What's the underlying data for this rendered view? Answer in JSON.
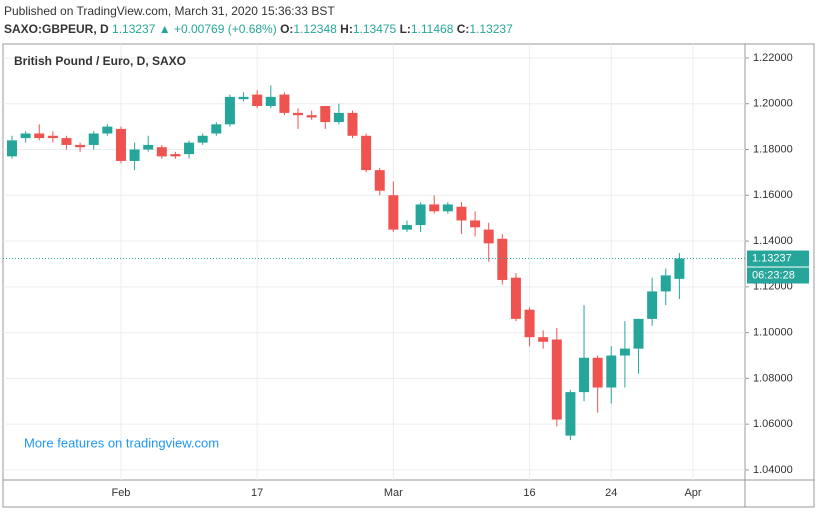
{
  "header": {
    "published": "Published on TradingView.com, March 31, 2020 15:36:33 BST",
    "symbol": "SAXO:GBPEUR, D",
    "last": "1.13237",
    "change": "▲ +0.00769 (+0.68%)",
    "ohlc": [
      {
        "label": "O:",
        "value": "1.12348"
      },
      {
        "label": "H:",
        "value": "1.13475"
      },
      {
        "label": "L:",
        "value": "1.11468"
      },
      {
        "label": "C:",
        "value": "1.13237"
      }
    ]
  },
  "chart_data": {
    "type": "candlestick",
    "title": "British Pound / Euro, D, SAXO",
    "categories": [
      null,
      null,
      null,
      null,
      null,
      null,
      null,
      null,
      "Feb",
      null,
      null,
      null,
      null,
      null,
      null,
      null,
      null,
      null,
      "17",
      null,
      null,
      null,
      null,
      null,
      null,
      null,
      null,
      null,
      "Mar",
      null,
      null,
      null,
      null,
      null,
      null,
      null,
      null,
      null,
      "16",
      null,
      null,
      null,
      null,
      null,
      "24",
      null,
      null,
      null,
      null,
      null,
      "Apr"
    ],
    "open": [
      1.177,
      1.185,
      1.187,
      1.186,
      1.185,
      1.182,
      1.182,
      1.187,
      1.189,
      1.175,
      1.18,
      1.181,
      1.178,
      1.178,
      1.183,
      1.187,
      1.191,
      1.202,
      1.204,
      1.199,
      1.204,
      1.196,
      1.195,
      1.199,
      1.192,
      1.196,
      1.186,
      1.171,
      1.16,
      1.145,
      1.147,
      1.156,
      1.153,
      1.155,
      1.149,
      1.145,
      1.141,
      1.124,
      1.11,
      1.098,
      1.097,
      1.055,
      1.074,
      1.089,
      1.076,
      1.09,
      1.093,
      1.106,
      1.118,
      1.12348,
      null
    ],
    "high": [
      1.186,
      1.188,
      1.191,
      1.188,
      1.186,
      1.183,
      1.188,
      1.191,
      1.19,
      1.183,
      1.186,
      1.182,
      1.179,
      1.184,
      1.187,
      1.192,
      1.204,
      1.205,
      1.206,
      1.208,
      1.205,
      1.198,
      1.197,
      1.199,
      1.2,
      1.197,
      1.187,
      1.172,
      1.166,
      1.149,
      1.157,
      1.16,
      1.157,
      1.157,
      1.153,
      1.148,
      1.143,
      1.126,
      1.111,
      1.101,
      1.102,
      1.075,
      1.112,
      1.09,
      1.094,
      1.105,
      1.106,
      1.124,
      1.128,
      1.13475,
      null
    ],
    "low": [
      1.176,
      1.183,
      1.184,
      1.183,
      1.18,
      1.179,
      1.18,
      1.186,
      1.174,
      1.171,
      1.179,
      1.176,
      1.176,
      1.176,
      1.182,
      1.186,
      1.19,
      1.201,
      1.198,
      1.198,
      1.195,
      1.189,
      1.193,
      1.189,
      1.191,
      1.185,
      1.17,
      1.16,
      1.144,
      1.144,
      1.144,
      1.152,
      1.152,
      1.143,
      1.142,
      1.131,
      1.121,
      1.105,
      1.094,
      1.093,
      1.059,
      1.053,
      1.07,
      1.065,
      1.069,
      1.076,
      1.082,
      1.103,
      1.112,
      1.11468,
      null
    ],
    "close": [
      1.184,
      1.187,
      1.185,
      1.185,
      1.182,
      1.181,
      1.187,
      1.19,
      1.175,
      1.18,
      1.182,
      1.177,
      1.177,
      1.183,
      1.186,
      1.191,
      1.203,
      1.203,
      1.199,
      1.203,
      1.196,
      1.195,
      1.194,
      1.192,
      1.196,
      1.186,
      1.171,
      1.162,
      1.145,
      1.147,
      1.156,
      1.153,
      1.156,
      1.149,
      1.146,
      1.139,
      1.123,
      1.106,
      1.098,
      1.096,
      1.062,
      1.074,
      1.089,
      1.076,
      1.09,
      1.093,
      1.106,
      1.118,
      1.125,
      1.13237,
      null
    ],
    "up_color": "#26a69a",
    "down_color": "#ef5350",
    "ylim": [
      1.0356,
      1.2261
    ],
    "yticks": [
      {
        "value": 1.04,
        "label": "1.04000"
      },
      {
        "value": 1.06,
        "label": "1.06000"
      },
      {
        "value": 1.08,
        "label": "1.08000"
      },
      {
        "value": 1.1,
        "label": "1.10000"
      },
      {
        "value": 1.12,
        "label": "1.12000"
      },
      {
        "value": 1.14,
        "label": "1.14000"
      },
      {
        "value": 1.16,
        "label": "1.16000"
      },
      {
        "value": 1.18,
        "label": "1.18000"
      },
      {
        "value": 1.2,
        "label": "1.20000"
      },
      {
        "value": 1.22,
        "label": "1.22000"
      }
    ],
    "grid": true,
    "last_price": 1.13237,
    "countdown": "06:23:28",
    "watermark": "More features on tradingview.com"
  }
}
